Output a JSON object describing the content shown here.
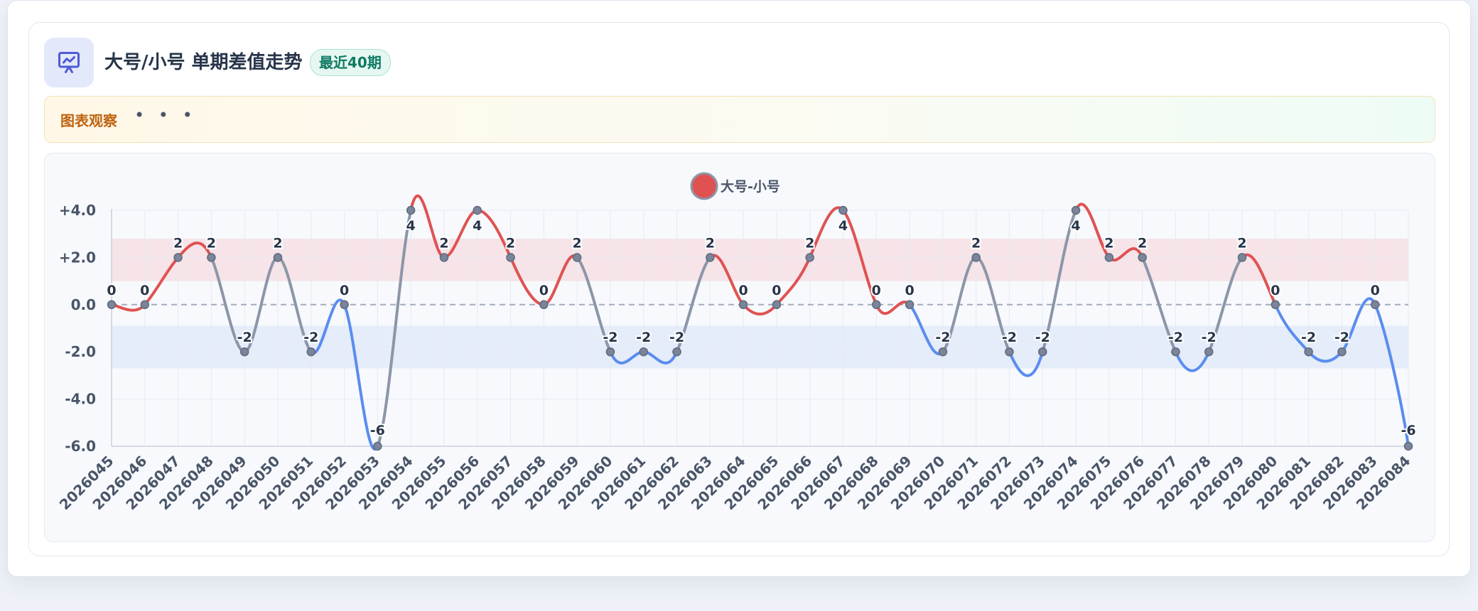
{
  "header": {
    "title": "大号/小号 单期差值走势",
    "badge": "最近40期"
  },
  "notice": {
    "label": "图表观察",
    "more": "• • •"
  },
  "colors": {
    "positive": "#e05252",
    "negative": "#5b8def",
    "neutral": "#8c96a8",
    "accent_icon": "#4f5bd5"
  },
  "chart_data": {
    "type": "line",
    "title": "大号/小号 单期差值走势",
    "xlabel": "",
    "ylabel": "",
    "legend": {
      "position": "top-center",
      "entries": [
        "大号-小号"
      ]
    },
    "grid": true,
    "ylim": [
      -6,
      4
    ],
    "y_ticks": [
      "+4.0",
      "+2.0",
      "0.0",
      "-2.0",
      "-4.0",
      "-6.0"
    ],
    "y_tick_values": [
      4,
      2,
      0,
      -2,
      -4,
      -6
    ],
    "bands": [
      {
        "from": 1,
        "to": 2.8,
        "color": "#f6e4e8"
      },
      {
        "from": -2.7,
        "to": -0.9,
        "color": "#e5ecfa"
      }
    ],
    "x": [
      "2026045",
      "2026046",
      "2026047",
      "2026048",
      "2026049",
      "2026050",
      "2026051",
      "2026052",
      "2026053",
      "2026054",
      "2026055",
      "2026056",
      "2026057",
      "2026058",
      "2026059",
      "2026060",
      "2026061",
      "2026062",
      "2026063",
      "2026064",
      "2026065",
      "2026066",
      "2026067",
      "2026068",
      "2026069",
      "2026070",
      "2026071",
      "2026072",
      "2026073",
      "2026074",
      "2026075",
      "2026076",
      "2026077",
      "2026078",
      "2026079",
      "2026080",
      "2026081",
      "2026082",
      "2026083",
      "2026084"
    ],
    "series": [
      {
        "name": "大号-小号",
        "values": [
          0,
          0,
          2,
          2,
          -2,
          2,
          -2,
          0,
          -6,
          4,
          2,
          4,
          2,
          0,
          2,
          -2,
          -2,
          -2,
          2,
          0,
          0,
          2,
          4,
          0,
          0,
          -2,
          2,
          -2,
          -2,
          4,
          2,
          2,
          -2,
          -2,
          2,
          0,
          -2,
          -2,
          0,
          -6
        ],
        "labels": [
          "0",
          "0",
          "2",
          "2",
          "-2",
          "2",
          "-2",
          "0",
          "-6",
          "4",
          "2",
          "4",
          "2",
          "0",
          "2",
          "-2",
          "-2",
          "-2",
          "2",
          "0",
          "0",
          "2",
          "4",
          "0",
          "0",
          "-2",
          "2",
          "-2",
          "-2",
          "4",
          "2",
          "2",
          "-2",
          "-2",
          "2",
          "0",
          "-2",
          "-2",
          "0",
          "-6"
        ]
      }
    ]
  }
}
